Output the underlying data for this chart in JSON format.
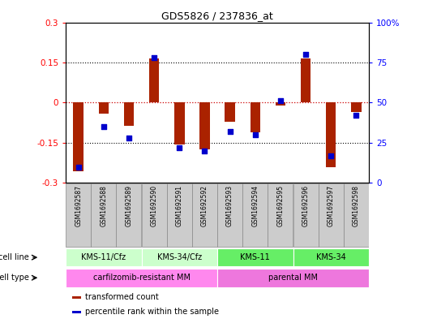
{
  "title": "GDS5826 / 237836_at",
  "samples": [
    "GSM1692587",
    "GSM1692588",
    "GSM1692589",
    "GSM1692590",
    "GSM1692591",
    "GSM1692592",
    "GSM1692593",
    "GSM1692594",
    "GSM1692595",
    "GSM1692596",
    "GSM1692597",
    "GSM1692598"
  ],
  "transformed_count": [
    -0.255,
    -0.04,
    -0.085,
    0.165,
    -0.155,
    -0.175,
    -0.07,
    -0.11,
    -0.01,
    0.165,
    -0.24,
    -0.035
  ],
  "percentile_rank": [
    10,
    35,
    28,
    78,
    22,
    20,
    32,
    30,
    51,
    80,
    17,
    42
  ],
  "ylim_left": [
    -0.3,
    0.3
  ],
  "ylim_right": [
    0,
    100
  ],
  "yticks_left": [
    -0.3,
    -0.15,
    0,
    0.15,
    0.3
  ],
  "yticks_right": [
    0,
    25,
    50,
    75,
    100
  ],
  "bar_color": "#aa2200",
  "dot_color": "#0000cc",
  "zero_line_color": "#cc0000",
  "cell_lines": [
    {
      "label": "KMS-11/Cfz",
      "start": 0,
      "end": 3,
      "color": "#ccffcc"
    },
    {
      "label": "KMS-34/Cfz",
      "start": 3,
      "end": 6,
      "color": "#ccffcc"
    },
    {
      "label": "KMS-11",
      "start": 6,
      "end": 9,
      "color": "#66ee66"
    },
    {
      "label": "KMS-34",
      "start": 9,
      "end": 12,
      "color": "#66ee66"
    }
  ],
  "cell_types": [
    {
      "label": "carfilzomib-resistant MM",
      "start": 0,
      "end": 6,
      "color": "#ff88ee"
    },
    {
      "label": "parental MM",
      "start": 6,
      "end": 12,
      "color": "#ee77dd"
    }
  ],
  "legend_items": [
    {
      "label": "transformed count",
      "color": "#aa2200"
    },
    {
      "label": "percentile rank within the sample",
      "color": "#0000cc"
    }
  ],
  "cell_line_label": "cell line",
  "cell_type_label": "cell type",
  "sample_box_color": "#cccccc",
  "sample_box_edge": "#888888"
}
